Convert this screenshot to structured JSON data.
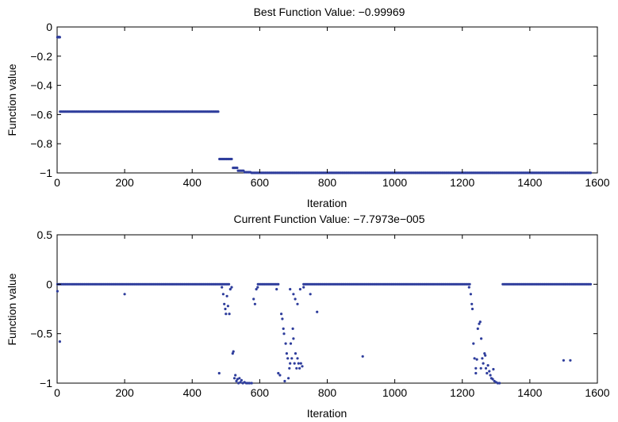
{
  "chart_data": [
    {
      "type": "scatter",
      "title": "Best Function Value: −0.99969",
      "xlabel": "Iteration",
      "ylabel": "Function value",
      "xlim": [
        0,
        1600
      ],
      "ylim": [
        -1,
        0
      ],
      "xticks": [
        "0",
        "200",
        "400",
        "600",
        "800",
        "1000",
        "1200",
        "1400",
        "1600"
      ],
      "yticks": [
        "0",
        "−0.2",
        "−0.4",
        "−0.6",
        "−0.8",
        "−1"
      ],
      "grid": false,
      "marker_color": "#2e3d9c",
      "segments": [
        {
          "x_start": 1,
          "x_end": 8,
          "y": -0.07
        },
        {
          "x_start": 9,
          "x_end": 480,
          "y": -0.58
        },
        {
          "x_start": 481,
          "x_end": 520,
          "y": -0.905
        },
        {
          "x_start": 521,
          "x_end": 535,
          "y": -0.965
        },
        {
          "x_start": 536,
          "x_end": 555,
          "y": -0.985
        },
        {
          "x_start": 556,
          "x_end": 575,
          "y": -0.995
        },
        {
          "x_start": 576,
          "x_end": 1580,
          "y": -0.99969
        }
      ]
    },
    {
      "type": "scatter",
      "title": "Current Function Value: −7.7973e−005",
      "xlabel": "Iteration",
      "ylabel": "Function value",
      "xlim": [
        0,
        1600
      ],
      "ylim": [
        -1,
        0.5
      ],
      "xticks": [
        "0",
        "200",
        "400",
        "600",
        "800",
        "1000",
        "1200",
        "1400",
        "1600"
      ],
      "yticks": [
        "0.5",
        "0",
        "−0.5",
        "−1"
      ],
      "grid": false,
      "marker_color": "#2e3d9c",
      "baseline_ranges": [
        [
          1,
          512
        ],
        [
          595,
          655
        ],
        [
          730,
          1225
        ],
        [
          1320,
          1580
        ]
      ],
      "baseline_y": 0,
      "points": [
        [
          1,
          -0.07
        ],
        [
          8,
          -0.58
        ],
        [
          200,
          -0.1
        ],
        [
          480,
          -0.9
        ],
        [
          488,
          -0.03
        ],
        [
          492,
          -0.1
        ],
        [
          495,
          -0.2
        ],
        [
          498,
          -0.25
        ],
        [
          500,
          -0.3
        ],
        [
          503,
          -0.12
        ],
        [
          506,
          -0.22
        ],
        [
          510,
          -0.3
        ],
        [
          513,
          -0.05
        ],
        [
          517,
          -0.03
        ],
        [
          520,
          -0.7
        ],
        [
          522,
          -0.68
        ],
        [
          525,
          -0.95
        ],
        [
          528,
          -0.92
        ],
        [
          531,
          -0.98
        ],
        [
          534,
          -0.96
        ],
        [
          537,
          -1.0
        ],
        [
          540,
          -0.95
        ],
        [
          543,
          -0.99
        ],
        [
          546,
          -0.97
        ],
        [
          550,
          -1.0
        ],
        [
          555,
          -0.99
        ],
        [
          560,
          -1.0
        ],
        [
          565,
          -1.0
        ],
        [
          570,
          -1.0
        ],
        [
          576,
          -1.0
        ],
        [
          582,
          -0.15
        ],
        [
          586,
          -0.2
        ],
        [
          590,
          -0.05
        ],
        [
          594,
          -0.03
        ],
        [
          650,
          -0.05
        ],
        [
          655,
          -0.9
        ],
        [
          660,
          -0.92
        ],
        [
          664,
          -0.3
        ],
        [
          667,
          -0.35
        ],
        [
          670,
          -0.45
        ],
        [
          672,
          -0.5
        ],
        [
          674,
          -0.98
        ],
        [
          677,
          -0.6
        ],
        [
          680,
          -0.7
        ],
        [
          683,
          -0.75
        ],
        [
          685,
          -0.95
        ],
        [
          688,
          -0.85
        ],
        [
          690,
          -0.8
        ],
        [
          692,
          -0.6
        ],
        [
          695,
          -0.75
        ],
        [
          698,
          -0.45
        ],
        [
          700,
          -0.55
        ],
        [
          703,
          -0.8
        ],
        [
          706,
          -0.7
        ],
        [
          709,
          -0.85
        ],
        [
          712,
          -0.75
        ],
        [
          715,
          -0.8
        ],
        [
          718,
          -0.85
        ],
        [
          722,
          -0.8
        ],
        [
          726,
          -0.83
        ],
        [
          690,
          -0.05
        ],
        [
          700,
          -0.1
        ],
        [
          705,
          -0.15
        ],
        [
          712,
          -0.2
        ],
        [
          720,
          -0.05
        ],
        [
          730,
          -0.03
        ],
        [
          750,
          -0.1
        ],
        [
          770,
          -0.28
        ],
        [
          905,
          -0.73
        ],
        [
          1220,
          -0.03
        ],
        [
          1225,
          -0.1
        ],
        [
          1228,
          -0.2
        ],
        [
          1230,
          -0.25
        ],
        [
          1233,
          -0.6
        ],
        [
          1236,
          -0.75
        ],
        [
          1240,
          -0.85
        ],
        [
          1243,
          -0.76
        ],
        [
          1246,
          -0.45
        ],
        [
          1250,
          -0.4
        ],
        [
          1253,
          -0.38
        ],
        [
          1256,
          -0.55
        ],
        [
          1259,
          -0.75
        ],
        [
          1262,
          -0.8
        ],
        [
          1266,
          -0.7
        ],
        [
          1270,
          -0.85
        ],
        [
          1273,
          -0.9
        ],
        [
          1276,
          -0.82
        ],
        [
          1280,
          -0.88
        ],
        [
          1283,
          -0.92
        ],
        [
          1286,
          -0.95
        ],
        [
          1290,
          -0.96
        ],
        [
          1295,
          -0.98
        ],
        [
          1300,
          -0.99
        ],
        [
          1305,
          -1.0
        ],
        [
          1310,
          -1.0
        ],
        [
          1240,
          -0.9
        ],
        [
          1255,
          -0.85
        ],
        [
          1268,
          -0.72
        ],
        [
          1292,
          -0.86
        ],
        [
          1500,
          -0.77
        ],
        [
          1520,
          -0.77
        ]
      ]
    }
  ]
}
